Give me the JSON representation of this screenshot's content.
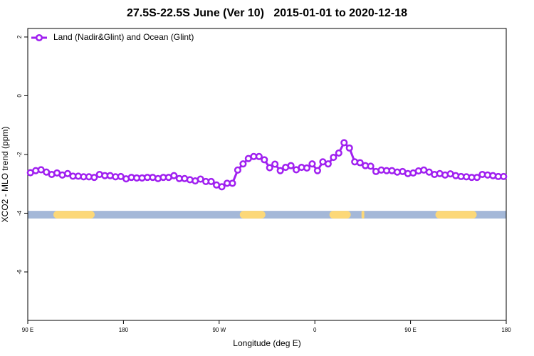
{
  "chart_data": {
    "type": "line",
    "title": "27.5S-22.5S June (Ver 10)   2015-01-01 to 2020-12-18",
    "x_label": "Longitude (deg E)",
    "y_label": "XCO2 - MLO trend (ppm)",
    "xlim": [
      90,
      540
    ],
    "ylim": [
      -7.65,
      2.29
    ],
    "xticks": [
      {
        "value": 90,
        "label": "90 E"
      },
      180,
      {
        "value": 270,
        "label": "90 W"
      },
      {
        "value": 360,
        "label": "0"
      },
      {
        "value": 450,
        "label": "90 E"
      },
      {
        "value": 540,
        "label": "180"
      }
    ],
    "yticks": [
      2,
      0,
      -2,
      -4,
      -6
    ],
    "legend_position": "top-left",
    "x": [
      92.5,
      97.5,
      102.5,
      107.5,
      112.5,
      117.5,
      122.5,
      127.5,
      132.5,
      137.5,
      142.5,
      147.5,
      152.5,
      157.5,
      162.5,
      167.5,
      172.5,
      177.5,
      182.5,
      187.5,
      192.5,
      197.5,
      202.5,
      207.5,
      212.5,
      217.5,
      222.5,
      227.5,
      232.5,
      237.5,
      242.5,
      247.5,
      252.5,
      257.5,
      262.5,
      267.5,
      272.5,
      277.5,
      282.5,
      287.5,
      292.5,
      297.5,
      302.5,
      307.5,
      312.5,
      317.5,
      322.5,
      327.5,
      332.5,
      337.5,
      342.5,
      347.5,
      352.5,
      357.5,
      362.5,
      367.5,
      372.5,
      377.5,
      382.5,
      387.5,
      392.5,
      397.5,
      402.5,
      407.5,
      412.5,
      417.5,
      422.5,
      427.5,
      432.5,
      437.5,
      442.5,
      447.5,
      452.5,
      457.5,
      462.5,
      467.5,
      472.5,
      477.5,
      482.5,
      487.5,
      492.5,
      497.5,
      502.5,
      507.5,
      512.5,
      517.5,
      522.5,
      527.5,
      532.5,
      537.5
    ],
    "series": [
      {
        "name": "Land (Nadir&Glint) and Ocean (Glint)",
        "color": "#a020f0",
        "values": [
          -2.62,
          -2.55,
          -2.52,
          -2.6,
          -2.68,
          -2.63,
          -2.7,
          -2.65,
          -2.74,
          -2.74,
          -2.76,
          -2.76,
          -2.78,
          -2.68,
          -2.72,
          -2.72,
          -2.76,
          -2.75,
          -2.83,
          -2.78,
          -2.8,
          -2.8,
          -2.78,
          -2.78,
          -2.82,
          -2.78,
          -2.78,
          -2.72,
          -2.82,
          -2.82,
          -2.86,
          -2.9,
          -2.84,
          -2.92,
          -2.92,
          -3.04,
          -3.1,
          -2.98,
          -2.98,
          -2.53,
          -2.32,
          -2.14,
          -2.07,
          -2.07,
          -2.18,
          -2.45,
          -2.33,
          -2.55,
          -2.44,
          -2.38,
          -2.52,
          -2.44,
          -2.46,
          -2.32,
          -2.55,
          -2.25,
          -2.32,
          -2.1,
          -1.95,
          -1.6,
          -1.78,
          -2.25,
          -2.28,
          -2.38,
          -2.4,
          -2.58,
          -2.53,
          -2.55,
          -2.55,
          -2.6,
          -2.58,
          -2.65,
          -2.63,
          -2.56,
          -2.53,
          -2.6,
          -2.68,
          -2.65,
          -2.7,
          -2.66,
          -2.72,
          -2.75,
          -2.76,
          -2.78,
          -2.78,
          -2.68,
          -2.7,
          -2.72,
          -2.75,
          -2.75
        ]
      }
    ],
    "land_mask": {
      "y": [
        -4.18,
        -3.92
      ],
      "ocean_color": "#a4b8d8",
      "land_color": "#fcd878",
      "land": [
        [
          114.1,
          152.9
        ],
        [
          289.4,
          313.5
        ],
        [
          373.7,
          393.8
        ],
        [
          403.9,
          406.5
        ],
        [
          473.4,
          512.2
        ]
      ]
    }
  }
}
